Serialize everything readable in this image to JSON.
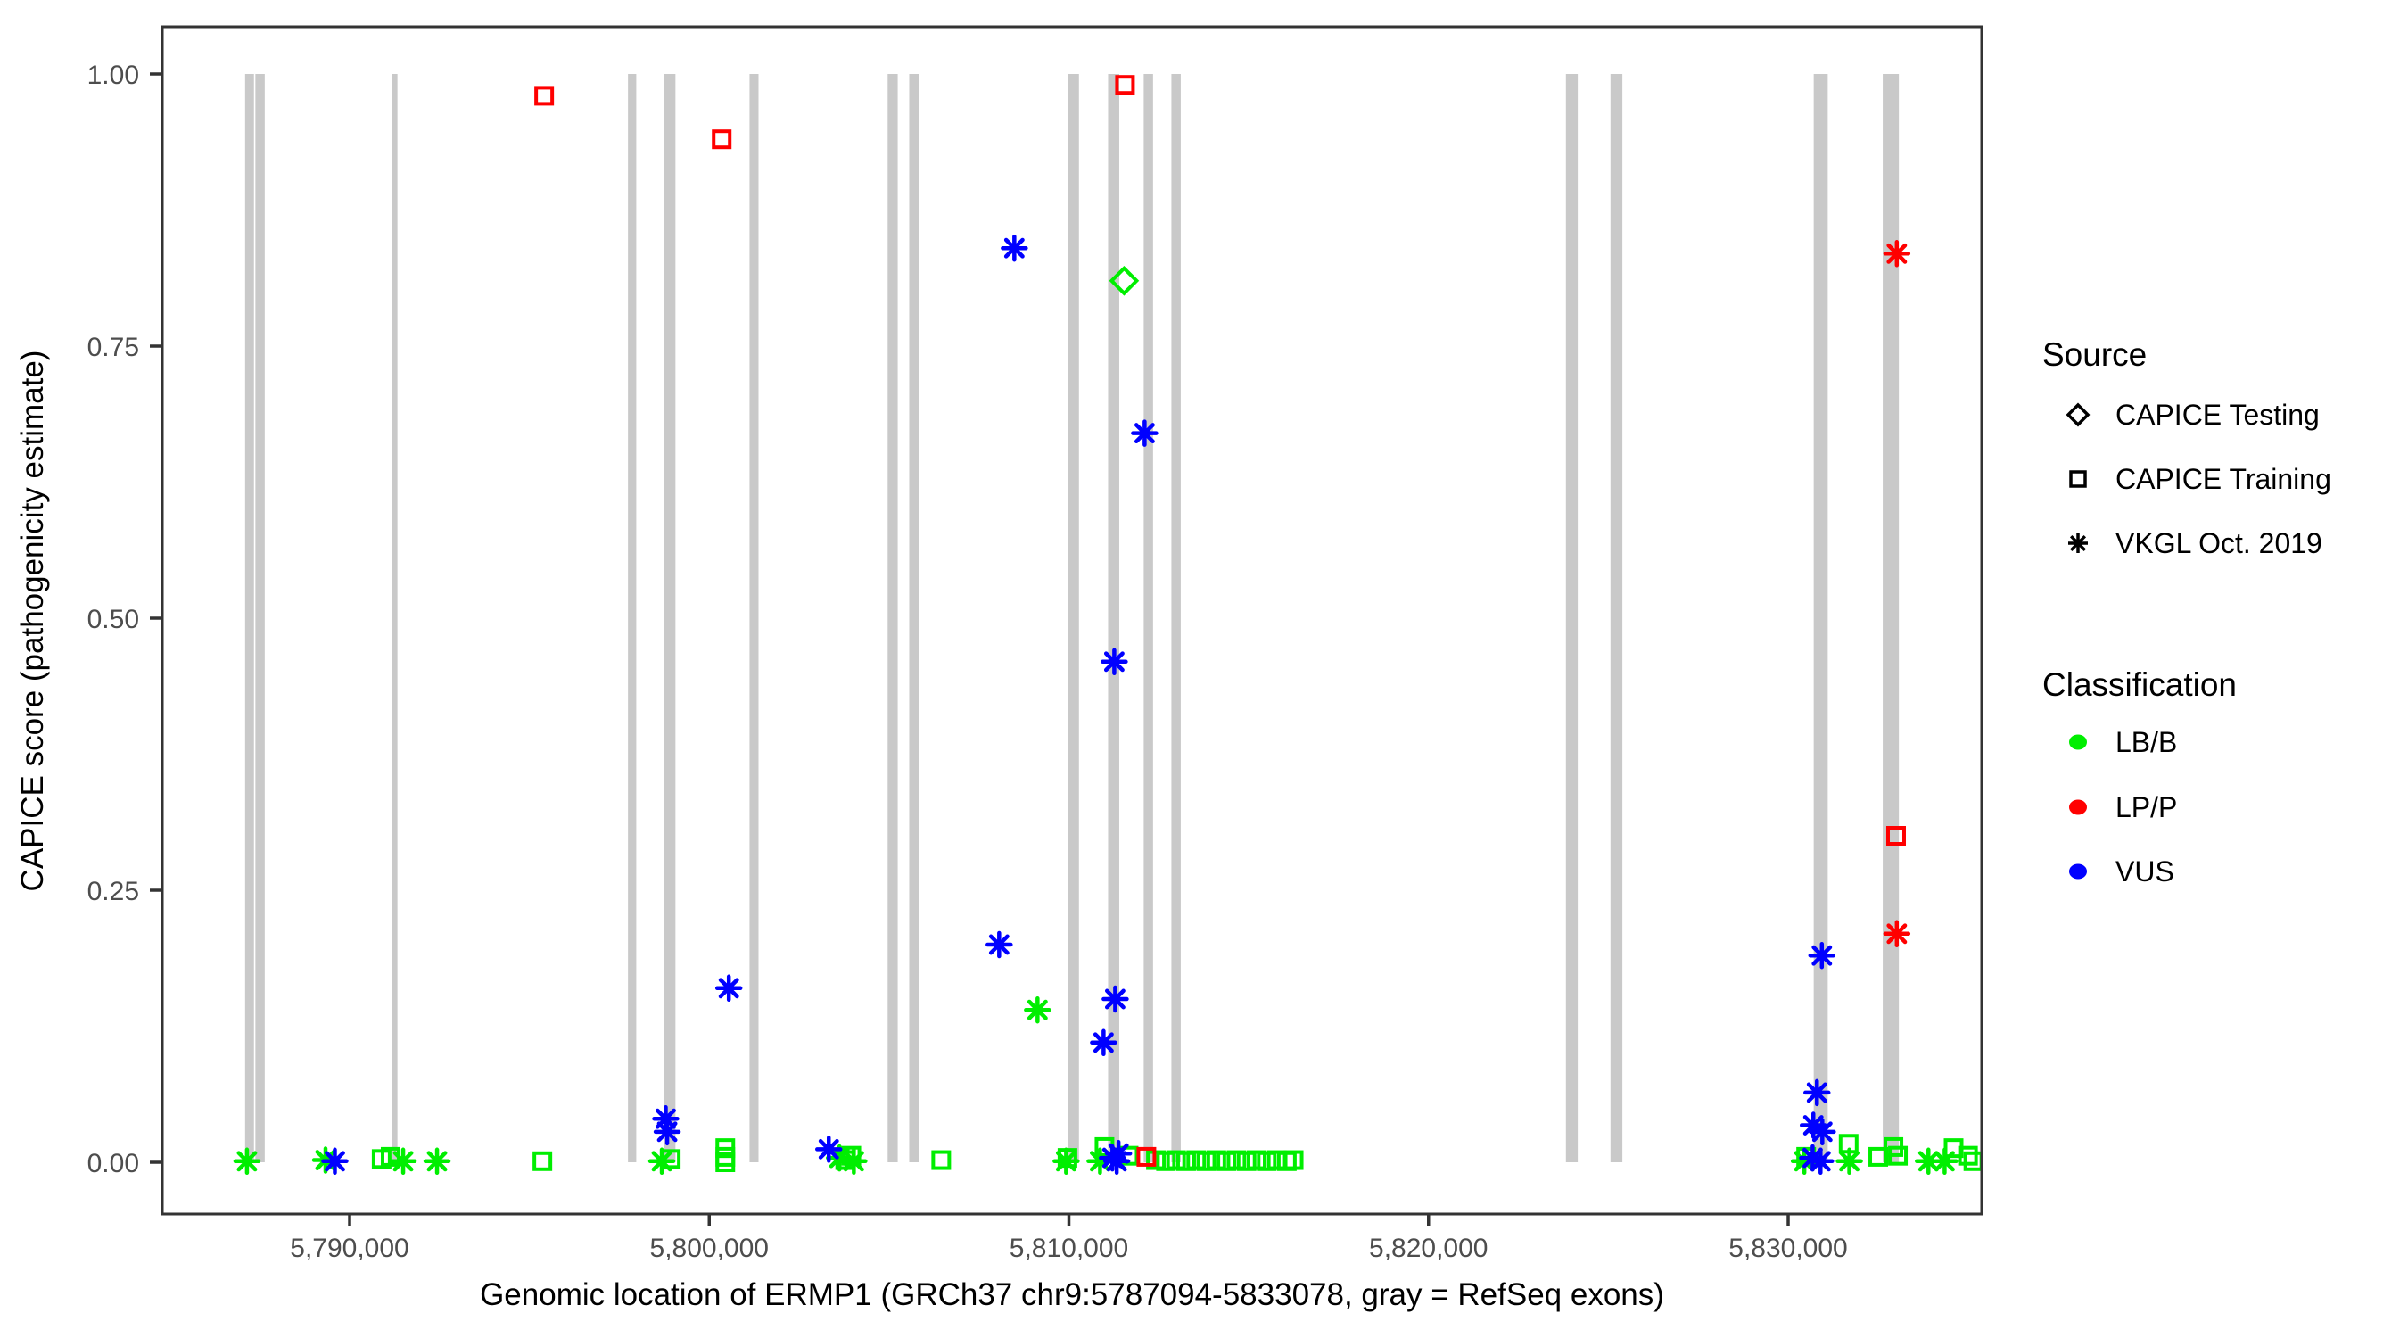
{
  "colors": {
    "LB/B": "#00ee00",
    "LP/P": "#ff0000",
    "VUS": "#0000ff",
    "exon": "#c9c9c9",
    "axis_text": "#4d4d4d",
    "panel_border": "#333333",
    "legend_marker": "#000000"
  },
  "legend": {
    "source": {
      "title": "Source",
      "items": [
        {
          "label": "CAPICE Testing",
          "marker": "diamond"
        },
        {
          "label": "CAPICE Training",
          "marker": "square"
        },
        {
          "label": "VKGL Oct. 2019",
          "marker": "asterisk"
        }
      ]
    },
    "classification": {
      "title": "Classification",
      "items": [
        {
          "label": "LB/B",
          "color_key": "LB/B"
        },
        {
          "label": "LP/P",
          "color_key": "LP/P"
        },
        {
          "label": "VUS",
          "color_key": "VUS"
        }
      ]
    }
  },
  "chart_data": {
    "type": "scatter",
    "title": "",
    "xlabel": "Genomic location of ERMP1 (GRCh37 chr9:5787094-5833078, gray = RefSeq exons)",
    "ylabel": "CAPICE score (pathogenicity estimate)",
    "xlim": [
      5784792,
      5835381
    ],
    "ylim": [
      0,
      1
    ],
    "grid": false,
    "legend_position": "right",
    "x_ticks": [
      {
        "v": 5790000,
        "label": "5,790,000"
      },
      {
        "v": 5800000,
        "label": "5,800,000"
      },
      {
        "v": 5810000,
        "label": "5,810,000"
      },
      {
        "v": 5820000,
        "label": "5,820,000"
      },
      {
        "v": 5830000,
        "label": "5,830,000"
      }
    ],
    "y_ticks": [
      {
        "v": 0.0,
        "label": "0.00"
      },
      {
        "v": 0.25,
        "label": "0.25"
      },
      {
        "v": 0.5,
        "label": "0.50"
      },
      {
        "v": 0.75,
        "label": "0.75"
      },
      {
        "v": 1.0,
        "label": "1.00"
      }
    ],
    "exons_note": "gray vertical bars span score 0 to 1 at RefSeq exon locations",
    "exons": [
      [
        5787094,
        5787340
      ],
      [
        5787380,
        5787640
      ],
      [
        5791170,
        5791330
      ],
      [
        5797740,
        5797970
      ],
      [
        5798730,
        5799060
      ],
      [
        5801120,
        5801370
      ],
      [
        5804960,
        5805240
      ],
      [
        5805560,
        5805840
      ],
      [
        5809970,
        5810280
      ],
      [
        5811090,
        5811400
      ],
      [
        5812080,
        5812340
      ],
      [
        5812850,
        5813110
      ],
      [
        5823820,
        5824150
      ],
      [
        5825060,
        5825390
      ],
      [
        5830710,
        5831100
      ],
      [
        5832630,
        5833078
      ]
    ],
    "series": [
      {
        "name": "CAPICE Testing",
        "marker": "diamond",
        "points": [
          {
            "x": 5811535,
            "y": 0.81,
            "classification": "LB/B"
          }
        ]
      },
      {
        "name": "CAPICE Training",
        "marker": "square",
        "points": [
          {
            "x": 5795409,
            "y": 0.98,
            "classification": "LP/P"
          },
          {
            "x": 5800346,
            "y": 0.94,
            "classification": "LP/P"
          },
          {
            "x": 5811560,
            "y": 0.99,
            "classification": "LP/P"
          },
          {
            "x": 5812155,
            "y": 0.005,
            "classification": "LP/P"
          },
          {
            "x": 5833000,
            "y": 0.3,
            "classification": "LP/P"
          },
          {
            "x": 5790890,
            "y": 0.003,
            "classification": "LB/B"
          },
          {
            "x": 5791140,
            "y": 0.005,
            "classification": "LB/B"
          },
          {
            "x": 5795360,
            "y": 0.001,
            "classification": "LB/B"
          },
          {
            "x": 5798930,
            "y": 0.003,
            "classification": "LB/B"
          },
          {
            "x": 5800446,
            "y": 0.013,
            "classification": "LB/B"
          },
          {
            "x": 5800446,
            "y": 0.005,
            "classification": "LB/B"
          },
          {
            "x": 5800446,
            "y": 0.0,
            "classification": "LB/B"
          },
          {
            "x": 5803780,
            "y": 0.002,
            "classification": "LB/B"
          },
          {
            "x": 5803950,
            "y": 0.006,
            "classification": "LB/B"
          },
          {
            "x": 5806450,
            "y": 0.002,
            "classification": "LB/B"
          },
          {
            "x": 5809960,
            "y": 0.004,
            "classification": "LB/B"
          },
          {
            "x": 5810990,
            "y": 0.014,
            "classification": "LB/B"
          },
          {
            "x": 5811660,
            "y": 0.006,
            "classification": "LB/B"
          },
          {
            "x": 5812420,
            "y": 0.002,
            "classification": "LB/B"
          },
          {
            "x": 5812700,
            "y": 0.001,
            "classification": "LB/B"
          },
          {
            "x": 5812980,
            "y": 0.002,
            "classification": "LB/B"
          },
          {
            "x": 5813260,
            "y": 0.001,
            "classification": "LB/B"
          },
          {
            "x": 5813540,
            "y": 0.002,
            "classification": "LB/B"
          },
          {
            "x": 5813820,
            "y": 0.001,
            "classification": "LB/B"
          },
          {
            "x": 5814100,
            "y": 0.002,
            "classification": "LB/B"
          },
          {
            "x": 5814380,
            "y": 0.001,
            "classification": "LB/B"
          },
          {
            "x": 5814660,
            "y": 0.002,
            "classification": "LB/B"
          },
          {
            "x": 5814940,
            "y": 0.001,
            "classification": "LB/B"
          },
          {
            "x": 5815220,
            "y": 0.002,
            "classification": "LB/B"
          },
          {
            "x": 5815500,
            "y": 0.001,
            "classification": "LB/B"
          },
          {
            "x": 5815780,
            "y": 0.002,
            "classification": "LB/B"
          },
          {
            "x": 5816060,
            "y": 0.001,
            "classification": "LB/B"
          },
          {
            "x": 5816250,
            "y": 0.002,
            "classification": "LB/B"
          },
          {
            "x": 5830500,
            "y": 0.005,
            "classification": "LB/B"
          },
          {
            "x": 5831681,
            "y": 0.017,
            "classification": "LB/B"
          },
          {
            "x": 5832505,
            "y": 0.005,
            "classification": "LB/B"
          },
          {
            "x": 5832927,
            "y": 0.014,
            "classification": "LB/B"
          },
          {
            "x": 5833051,
            "y": 0.006,
            "classification": "LB/B"
          },
          {
            "x": 5834600,
            "y": 0.013,
            "classification": "LB/B"
          },
          {
            "x": 5835000,
            "y": 0.006,
            "classification": "LB/B"
          },
          {
            "x": 5835150,
            "y": 0.001,
            "classification": "LB/B"
          }
        ]
      },
      {
        "name": "VKGL Oct. 2019",
        "marker": "asterisk",
        "points": [
          {
            "x": 5787146,
            "y": 0.001,
            "classification": "LB/B"
          },
          {
            "x": 5789330,
            "y": 0.002,
            "classification": "LB/B"
          },
          {
            "x": 5791489,
            "y": 0.001,
            "classification": "LB/B"
          },
          {
            "x": 5792431,
            "y": 0.001,
            "classification": "LB/B"
          },
          {
            "x": 5798680,
            "y": 0.001,
            "classification": "LB/B"
          },
          {
            "x": 5803620,
            "y": 0.004,
            "classification": "LB/B"
          },
          {
            "x": 5804020,
            "y": 0.001,
            "classification": "LB/B"
          },
          {
            "x": 5809128,
            "y": 0.14,
            "classification": "LB/B"
          },
          {
            "x": 5809922,
            "y": 0.001,
            "classification": "LB/B"
          },
          {
            "x": 5810866,
            "y": 0.001,
            "classification": "LB/B"
          },
          {
            "x": 5830450,
            "y": 0.001,
            "classification": "LB/B"
          },
          {
            "x": 5831700,
            "y": 0.001,
            "classification": "LB/B"
          },
          {
            "x": 5833900,
            "y": 0.001,
            "classification": "LB/B"
          },
          {
            "x": 5834350,
            "y": 0.001,
            "classification": "LB/B"
          },
          {
            "x": 5789590,
            "y": 0.001,
            "classification": "VUS"
          },
          {
            "x": 5798790,
            "y": 0.04,
            "classification": "VUS"
          },
          {
            "x": 5798830,
            "y": 0.028,
            "classification": "VUS"
          },
          {
            "x": 5800544,
            "y": 0.16,
            "classification": "VUS"
          },
          {
            "x": 5803323,
            "y": 0.012,
            "classification": "VUS"
          },
          {
            "x": 5808061,
            "y": 0.2,
            "classification": "VUS"
          },
          {
            "x": 5808483,
            "y": 0.84,
            "classification": "VUS"
          },
          {
            "x": 5810964,
            "y": 0.11,
            "classification": "VUS"
          },
          {
            "x": 5811287,
            "y": 0.15,
            "classification": "VUS"
          },
          {
            "x": 5811262,
            "y": 0.46,
            "classification": "VUS"
          },
          {
            "x": 5812105,
            "y": 0.67,
            "classification": "VUS"
          },
          {
            "x": 5811210,
            "y": 0.004,
            "classification": "VUS"
          },
          {
            "x": 5811330,
            "y": 0.001,
            "classification": "VUS"
          },
          {
            "x": 5811380,
            "y": 0.008,
            "classification": "VUS"
          },
          {
            "x": 5830800,
            "y": 0.064,
            "classification": "VUS"
          },
          {
            "x": 5830700,
            "y": 0.034,
            "classification": "VUS"
          },
          {
            "x": 5830950,
            "y": 0.028,
            "classification": "VUS"
          },
          {
            "x": 5830680,
            "y": 0.004,
            "classification": "VUS"
          },
          {
            "x": 5830900,
            "y": 0.001,
            "classification": "VUS"
          },
          {
            "x": 5830937,
            "y": 0.19,
            "classification": "VUS"
          },
          {
            "x": 5833021,
            "y": 0.835,
            "classification": "LP/P"
          },
          {
            "x": 5833021,
            "y": 0.21,
            "classification": "LP/P"
          }
        ]
      }
    ]
  }
}
